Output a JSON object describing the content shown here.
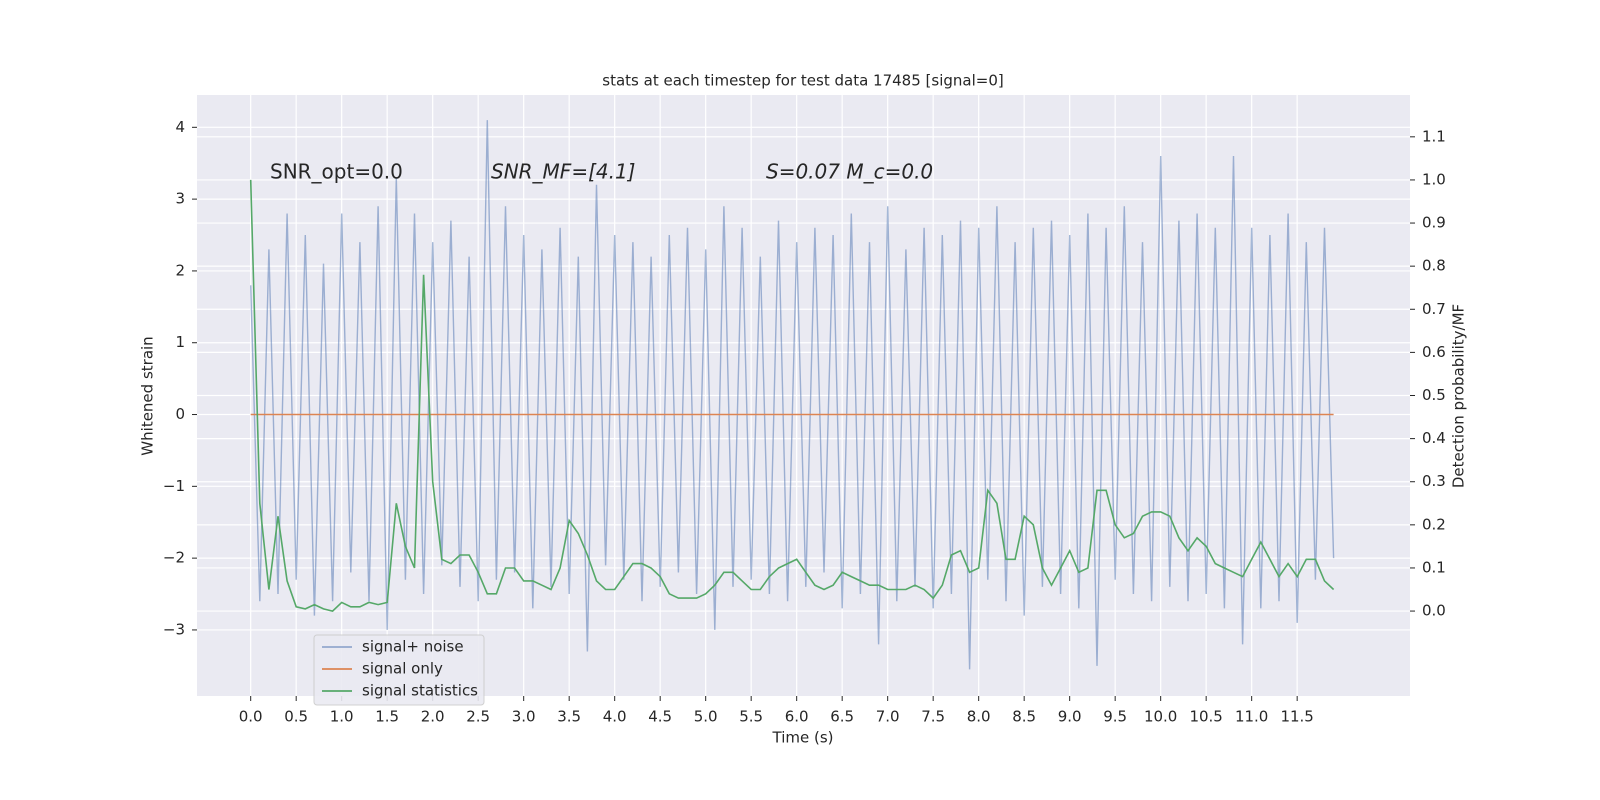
{
  "chart_data": {
    "type": "line",
    "title": "stats at each timestep for test data 17485 [signal=0]",
    "xlabel": "Time (s)",
    "ylabel": "Whitened strain",
    "y2label": "Detection probability/MF",
    "annotations": [
      "SNR_opt=0.0",
      "SNR_MF=[4.1]",
      "S=0.07   M_c=0.0"
    ],
    "grid": true,
    "legend": "lower left",
    "xlim": [
      -0.59,
      12.74
    ],
    "ylim": [
      -3.92,
      4.45
    ],
    "y2lim": [
      -0.197,
      1.197
    ],
    "xticks": [
      {
        "value": 0,
        "label": "0.0"
      },
      {
        "value": 0.5,
        "label": "0.5"
      },
      {
        "value": 1,
        "label": "1.0"
      },
      {
        "value": 1.5,
        "label": "1.5"
      },
      {
        "value": 2,
        "label": "2.0"
      },
      {
        "value": 2.5,
        "label": "2.5"
      },
      {
        "value": 3,
        "label": "3.0"
      },
      {
        "value": 3.5,
        "label": "3.5"
      },
      {
        "value": 4,
        "label": "4.0"
      },
      {
        "value": 4.5,
        "label": "4.5"
      },
      {
        "value": 5,
        "label": "5.0"
      },
      {
        "value": 5.5,
        "label": "5.5"
      },
      {
        "value": 6,
        "label": "6.0"
      },
      {
        "value": 6.5,
        "label": "6.5"
      },
      {
        "value": 7,
        "label": "7.0"
      },
      {
        "value": 7.5,
        "label": "7.5"
      },
      {
        "value": 8,
        "label": "8.0"
      },
      {
        "value": 8.5,
        "label": "8.5"
      },
      {
        "value": 9,
        "label": "9.0"
      },
      {
        "value": 9.5,
        "label": "9.5"
      },
      {
        "value": 10,
        "label": "10.0"
      },
      {
        "value": 10.5,
        "label": "10.5"
      },
      {
        "value": 11,
        "label": "11.0"
      },
      {
        "value": 11.5,
        "label": "11.5"
      }
    ],
    "yticks": [
      {
        "value": -3,
        "label": "−3"
      },
      {
        "value": -2,
        "label": "−2"
      },
      {
        "value": -1,
        "label": "−1"
      },
      0,
      1,
      2,
      3,
      4
    ],
    "y2ticks": [
      {
        "value": 0,
        "label": "0.0"
      },
      {
        "value": 0.1,
        "label": "0.1"
      },
      {
        "value": 0.2,
        "label": "0.2"
      },
      {
        "value": 0.3,
        "label": "0.3"
      },
      {
        "value": 0.4,
        "label": "0.4"
      },
      {
        "value": 0.5,
        "label": "0.5"
      },
      {
        "value": 0.6,
        "label": "0.6"
      },
      {
        "value": 0.7,
        "label": "0.7"
      },
      {
        "value": 0.8,
        "label": "0.8"
      },
      {
        "value": 0.9,
        "label": "0.9"
      },
      {
        "value": 1,
        "label": "1.0"
      },
      {
        "value": 1.1,
        "label": "1.1"
      }
    ],
    "x": [
      0,
      0.1,
      0.2,
      0.3,
      0.4,
      0.5,
      0.6,
      0.7,
      0.8,
      0.9,
      1,
      1.1,
      1.2,
      1.3,
      1.4,
      1.5,
      1.6,
      1.7,
      1.8,
      1.9,
      2,
      2.1,
      2.2,
      2.3,
      2.4,
      2.5,
      2.6,
      2.7,
      2.8,
      2.9,
      3,
      3.1,
      3.2,
      3.3,
      3.4,
      3.5,
      3.6,
      3.7,
      3.8,
      3.9,
      4,
      4.1,
      4.2,
      4.3,
      4.4,
      4.5,
      4.6,
      4.7,
      4.8,
      4.9,
      5,
      5.1,
      5.2,
      5.3,
      5.4,
      5.5,
      5.6,
      5.7,
      5.8,
      5.9,
      6,
      6.1,
      6.2,
      6.3,
      6.4,
      6.5,
      6.6,
      6.7,
      6.8,
      6.9,
      7,
      7.1,
      7.2,
      7.3,
      7.4,
      7.5,
      7.6,
      7.7,
      7.8,
      7.9,
      8,
      8.1,
      8.2,
      8.3,
      8.4,
      8.5,
      8.6,
      8.7,
      8.8,
      8.9,
      9,
      9.1,
      9.2,
      9.3,
      9.4,
      9.5,
      9.6,
      9.7,
      9.8,
      9.9,
      10,
      10.1,
      10.2,
      10.3,
      10.4,
      10.5,
      10.6,
      10.7,
      10.8,
      10.9,
      11,
      11.1,
      11.2,
      11.3,
      11.4,
      11.5,
      11.6,
      11.7,
      11.8,
      11.9
    ],
    "series": [
      {
        "name": "signal+ noise",
        "color": "#4c72b0",
        "values": [
          1.8,
          -2.6,
          2.3,
          -2.5,
          2.8,
          -2.3,
          2.5,
          -2.8,
          2.1,
          -2.6,
          2.8,
          -2.2,
          2.4,
          -2.6,
          2.9,
          -3.0,
          3.3,
          -2.3,
          2.8,
          -2.5,
          2.4,
          -2.1,
          2.7,
          -2.4,
          2.2,
          -2.6,
          4.1,
          -2.3,
          2.9,
          -2.2,
          2.5,
          -2.7,
          2.3,
          -2.4,
          2.6,
          -2.5,
          2.2,
          -3.3,
          3.2,
          -2.1,
          2.5,
          -2.3,
          2.4,
          -2.6,
          2.2,
          -2.4,
          2.5,
          -2.2,
          2.6,
          -2.5,
          2.3,
          -3.0,
          2.9,
          -2.4,
          2.6,
          -2.3,
          2.2,
          -2.5,
          2.7,
          -2.6,
          2.4,
          -2.4,
          2.6,
          -2.2,
          2.5,
          -2.7,
          2.8,
          -2.5,
          2.4,
          -3.2,
          2.9,
          -2.6,
          2.3,
          -2.4,
          2.6,
          -2.7,
          2.5,
          -2.5,
          2.7,
          -3.55,
          2.6,
          -2.3,
          2.9,
          -2.6,
          2.4,
          -2.8,
          2.6,
          -2.4,
          2.7,
          -2.5,
          2.5,
          -2.7,
          2.8,
          -3.5,
          2.6,
          -2.3,
          2.9,
          -2.5,
          2.4,
          -2.6,
          3.6,
          -2.4,
          2.7,
          -2.6,
          2.8,
          -2.5,
          2.6,
          -2.7,
          3.6,
          -3.2,
          2.6,
          -2.7,
          2.5,
          -2.6,
          2.8,
          -2.9,
          2.4,
          -2.3,
          2.6,
          -2.0
        ]
      },
      {
        "name": "signal only",
        "color": "#dd8452",
        "values": [
          0,
          0,
          0,
          0,
          0,
          0,
          0,
          0,
          0,
          0,
          0,
          0,
          0,
          0,
          0,
          0,
          0,
          0,
          0,
          0,
          0,
          0,
          0,
          0,
          0,
          0,
          0,
          0,
          0,
          0,
          0,
          0,
          0,
          0,
          0,
          0,
          0,
          0,
          0,
          0,
          0,
          0,
          0,
          0,
          0,
          0,
          0,
          0,
          0,
          0,
          0,
          0,
          0,
          0,
          0,
          0,
          0,
          0,
          0,
          0,
          0,
          0,
          0,
          0,
          0,
          0,
          0,
          0,
          0,
          0,
          0,
          0,
          0,
          0,
          0,
          0,
          0,
          0,
          0,
          0,
          0,
          0,
          0,
          0,
          0,
          0,
          0,
          0,
          0,
          0,
          0,
          0,
          0,
          0,
          0,
          0,
          0,
          0,
          0,
          0,
          0,
          0,
          0,
          0,
          0,
          0,
          0,
          0,
          0,
          0,
          0,
          0,
          0,
          0,
          0,
          0,
          0,
          0,
          0,
          0
        ]
      },
      {
        "name": "signal statistics",
        "color": "#55a868",
        "axis": "y2",
        "values": [
          1.0,
          0.25,
          0.05,
          0.22,
          0.07,
          0.01,
          0.005,
          0.015,
          0.005,
          0.0,
          0.02,
          0.01,
          0.01,
          0.02,
          0.015,
          0.02,
          0.25,
          0.15,
          0.1,
          0.78,
          0.3,
          0.12,
          0.11,
          0.13,
          0.13,
          0.09,
          0.04,
          0.04,
          0.1,
          0.1,
          0.07,
          0.07,
          0.06,
          0.05,
          0.1,
          0.21,
          0.18,
          0.13,
          0.07,
          0.05,
          0.05,
          0.08,
          0.11,
          0.11,
          0.1,
          0.08,
          0.04,
          0.03,
          0.03,
          0.03,
          0.04,
          0.06,
          0.09,
          0.09,
          0.07,
          0.05,
          0.05,
          0.08,
          0.1,
          0.11,
          0.12,
          0.09,
          0.06,
          0.05,
          0.06,
          0.09,
          0.08,
          0.07,
          0.06,
          0.06,
          0.05,
          0.05,
          0.05,
          0.06,
          0.05,
          0.03,
          0.06,
          0.13,
          0.14,
          0.09,
          0.1,
          0.28,
          0.25,
          0.12,
          0.12,
          0.22,
          0.2,
          0.1,
          0.06,
          0.1,
          0.14,
          0.09,
          0.1,
          0.28,
          0.28,
          0.2,
          0.17,
          0.18,
          0.22,
          0.23,
          0.23,
          0.22,
          0.17,
          0.14,
          0.17,
          0.15,
          0.11,
          0.1,
          0.09,
          0.08,
          0.12,
          0.16,
          0.12,
          0.08,
          0.11,
          0.08,
          0.12,
          0.12,
          0.07,
          0.05
        ]
      }
    ]
  }
}
